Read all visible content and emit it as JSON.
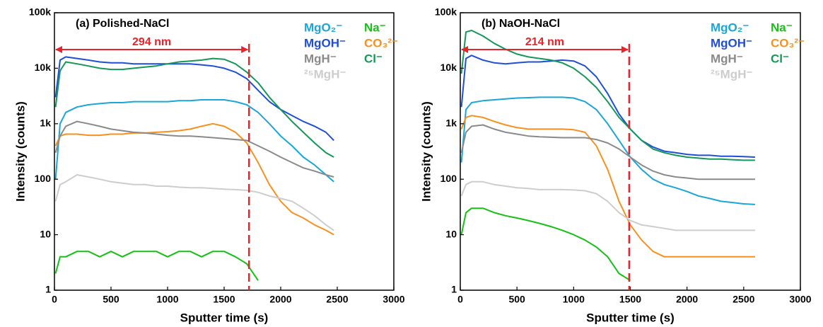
{
  "chart_data": [
    {
      "type": "line",
      "title": "(a) Polished-NaCl",
      "xlabel": "Sputter time (s)",
      "ylabel": "Intensity (counts)",
      "log_y": true,
      "xlim": [
        0,
        3000
      ],
      "xticks": [
        0,
        500,
        1000,
        1500,
        2000,
        2500,
        3000
      ],
      "ylim": [
        1,
        100000
      ],
      "yticks": [
        1,
        10,
        100,
        {
          "value": 1000,
          "label": "1k"
        },
        {
          "value": 10000,
          "label": "10k"
        },
        {
          "value": 100000,
          "label": "100k"
        }
      ],
      "annotation": {
        "text": "294 nm",
        "x_start": 0,
        "x_end": 1720
      },
      "x": [
        10,
        50,
        100,
        200,
        300,
        400,
        500,
        600,
        700,
        800,
        900,
        1000,
        1100,
        1200,
        1300,
        1400,
        1500,
        1600,
        1700,
        1800,
        1900,
        2000,
        2100,
        2200,
        2300,
        2400,
        2470
      ],
      "series": [
        {
          "name": "MgO₂⁻",
          "color": "#1aa6d6",
          "values": [
            100,
            1000,
            1600,
            2000,
            2200,
            2300,
            2400,
            2400,
            2500,
            2500,
            2500,
            2500,
            2600,
            2600,
            2700,
            2700,
            2700,
            2500,
            2200,
            1600,
            1000,
            600,
            400,
            250,
            180,
            120,
            90
          ]
        },
        {
          "name": "Na⁻",
          "color": "#16c016",
          "values": [
            2,
            4,
            4,
            5,
            5,
            4,
            5,
            4,
            5,
            5,
            5,
            4,
            5,
            5,
            4,
            5,
            5,
            4,
            3,
            1.5,
            null,
            null,
            null,
            null,
            null,
            null,
            null
          ]
        },
        {
          "name": "MgOH⁻",
          "color": "#1f4fd6",
          "values": [
            3000,
            14000,
            16000,
            15000,
            14000,
            13000,
            12500,
            12500,
            12000,
            12000,
            12000,
            12000,
            12000,
            12000,
            11500,
            11000,
            10000,
            8500,
            6500,
            4000,
            2500,
            1800,
            1400,
            1100,
            900,
            700,
            500
          ]
        },
        {
          "name": "CO₃²⁻",
          "color": "#f7901e",
          "values": [
            400,
            600,
            650,
            650,
            620,
            620,
            650,
            650,
            680,
            680,
            700,
            720,
            750,
            800,
            900,
            1000,
            900,
            700,
            450,
            200,
            80,
            40,
            25,
            20,
            15,
            12,
            10
          ]
        },
        {
          "name": "MgH⁻",
          "color": "#8a8a8a",
          "values": [
            300,
            600,
            900,
            1100,
            1000,
            900,
            800,
            750,
            700,
            680,
            650,
            620,
            600,
            600,
            580,
            560,
            540,
            520,
            500,
            400,
            320,
            250,
            200,
            160,
            140,
            120,
            110
          ]
        },
        {
          "name": "Cl⁻",
          "color": "#16975a",
          "values": [
            2000,
            9000,
            13000,
            12000,
            11000,
            10000,
            9500,
            9500,
            10000,
            10500,
            11000,
            12000,
            13000,
            13500,
            14000,
            15000,
            14500,
            12000,
            8500,
            5500,
            3000,
            1800,
            1100,
            700,
            450,
            300,
            250
          ]
        },
        {
          "name": "²⁵MgH⁻",
          "color": "#cdcdcd",
          "values": [
            40,
            80,
            90,
            120,
            110,
            100,
            90,
            85,
            80,
            80,
            75,
            75,
            72,
            70,
            70,
            68,
            66,
            65,
            63,
            58,
            50,
            45,
            40,
            30,
            22,
            15,
            12
          ]
        }
      ]
    },
    {
      "type": "line",
      "title": "(b) NaOH-NaCl",
      "xlabel": "Sputter time (s)",
      "ylabel": "Intensity (counts)",
      "log_y": true,
      "xlim": [
        0,
        3000
      ],
      "xticks": [
        0,
        500,
        1000,
        1500,
        2000,
        2500,
        3000
      ],
      "ylim": [
        1,
        100000
      ],
      "yticks": [
        1,
        10,
        100,
        {
          "value": 1000,
          "label": "1k"
        },
        {
          "value": 10000,
          "label": "10k"
        },
        {
          "value": 100000,
          "label": "100k"
        }
      ],
      "annotation": {
        "text": "214 nm",
        "x_start": 0,
        "x_end": 1490
      },
      "x": [
        10,
        50,
        100,
        200,
        300,
        400,
        500,
        600,
        700,
        800,
        900,
        1000,
        1100,
        1200,
        1300,
        1400,
        1500,
        1600,
        1700,
        1800,
        1900,
        2000,
        2100,
        2200,
        2300,
        2400,
        2500,
        2600
      ],
      "series": [
        {
          "name": "MgO₂⁻",
          "color": "#1aa6d6",
          "values": [
            200,
            1800,
            2400,
            2600,
            2700,
            2800,
            2900,
            2950,
            3000,
            3000,
            3000,
            2900,
            2500,
            1800,
            1000,
            500,
            250,
            150,
            100,
            80,
            70,
            60,
            50,
            45,
            40,
            38,
            36,
            35
          ]
        },
        {
          "name": "Na⁻",
          "color": "#16c016",
          "values": [
            10,
            25,
            30,
            30,
            25,
            22,
            20,
            18,
            16,
            14,
            12,
            10,
            8,
            6,
            4,
            2,
            1.5,
            null,
            null,
            null,
            null,
            null,
            null,
            null,
            null,
            null,
            null,
            null
          ]
        },
        {
          "name": "MgOH⁻",
          "color": "#1f4fd6",
          "values": [
            2000,
            15000,
            17000,
            14000,
            12500,
            12000,
            12500,
            13000,
            13000,
            13500,
            14000,
            13500,
            11000,
            7000,
            3500,
            1500,
            800,
            500,
            380,
            320,
            300,
            280,
            270,
            270,
            260,
            260,
            255,
            250
          ]
        },
        {
          "name": "CO₃²⁻",
          "color": "#f7901e",
          "values": [
            800,
            1300,
            1400,
            1300,
            1100,
            950,
            850,
            800,
            800,
            800,
            800,
            780,
            700,
            400,
            150,
            40,
            15,
            8,
            5,
            4,
            4,
            4,
            4,
            4,
            4,
            4,
            4,
            4
          ]
        },
        {
          "name": "MgH⁻",
          "color": "#8a8a8a",
          "values": [
            300,
            700,
            900,
            950,
            800,
            700,
            650,
            600,
            580,
            570,
            560,
            560,
            560,
            520,
            450,
            350,
            250,
            180,
            140,
            120,
            110,
            105,
            100,
            100,
            100,
            100,
            100,
            100
          ]
        },
        {
          "name": "Cl⁻",
          "color": "#16975a",
          "values": [
            8000,
            45000,
            48000,
            38000,
            28000,
            22000,
            18000,
            16000,
            15000,
            14000,
            12500,
            10000,
            7000,
            4500,
            2500,
            1300,
            800,
            500,
            350,
            300,
            270,
            250,
            240,
            230,
            230,
            225,
            220,
            220
          ]
        },
        {
          "name": "²⁵MgH⁻",
          "color": "#cdcdcd",
          "values": [
            50,
            80,
            90,
            90,
            80,
            75,
            70,
            68,
            65,
            65,
            65,
            64,
            62,
            55,
            40,
            25,
            18,
            15,
            14,
            13,
            12,
            12,
            12,
            12,
            12,
            12,
            12,
            12
          ]
        }
      ]
    }
  ]
}
